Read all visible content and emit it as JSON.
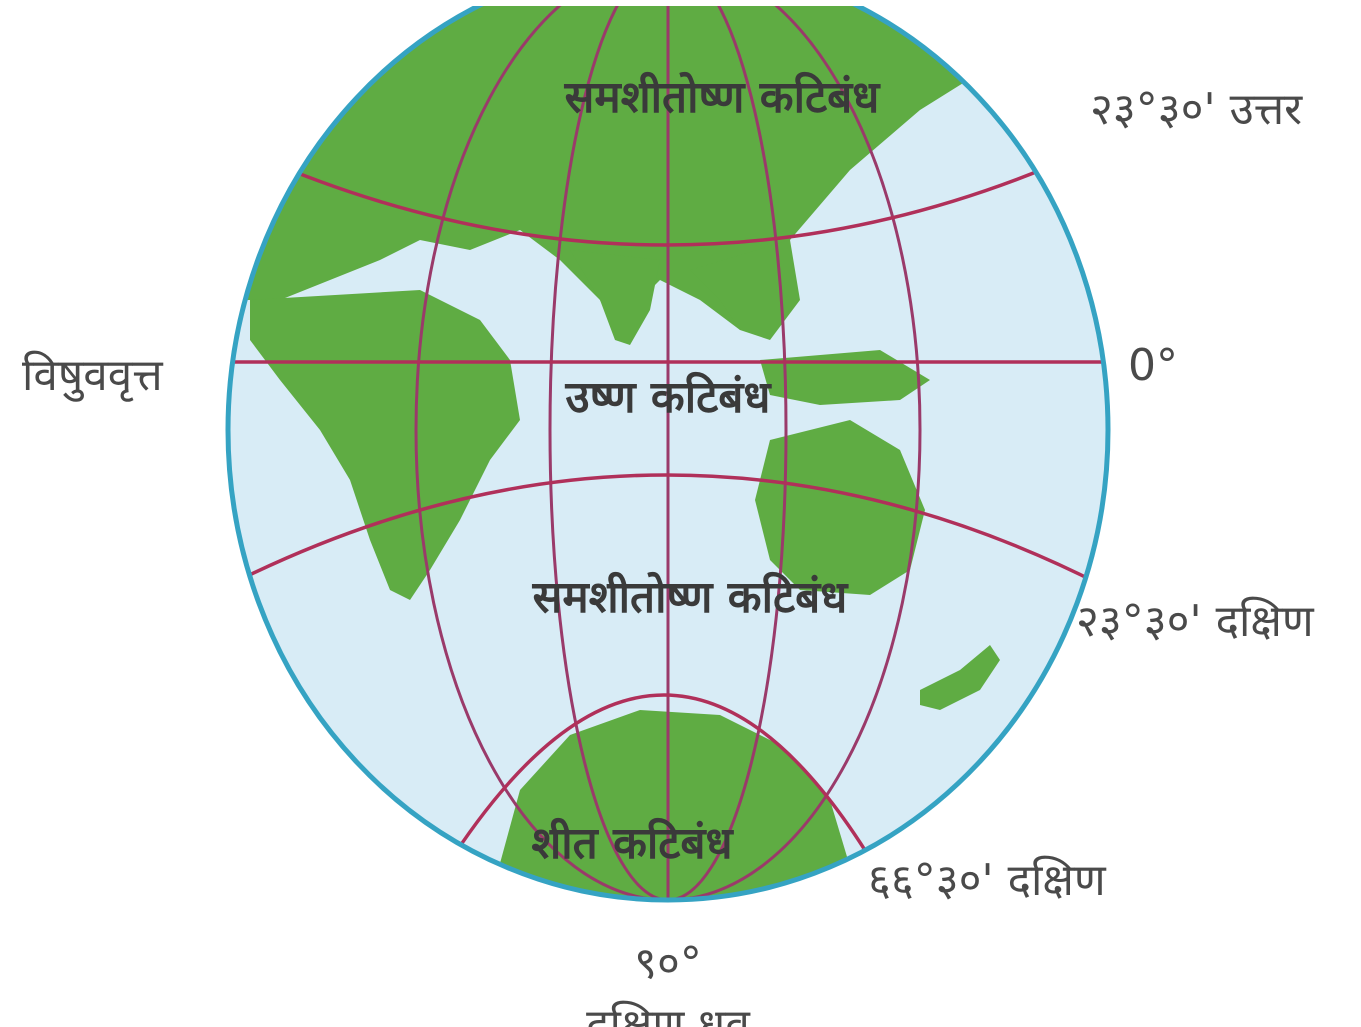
{
  "colors": {
    "ocean": "#d8ecf6",
    "land": "#5fac43",
    "globe_outline": "#35a3c3",
    "circle_lines": "#b0305a",
    "meridian_lines": "#9a3a6a",
    "label_text": "#3a3a3a"
  },
  "zones": {
    "north_temperate": "समशीतोष्ण कटिबंध",
    "torrid": "उष्ण कटिबंध",
    "south_temperate": "समशीतोष्ण कटिबंध",
    "frigid": "शीत कटिबंध"
  },
  "latitudes": {
    "tropic_north": "२३°३०' उत्तर",
    "equator_name": "विषुववृत्त",
    "equator_degree": "0°",
    "tropic_south": "२३°३०' दक्षिण",
    "antarctic_circle": "६६°३०' दक्षिण",
    "south_pole_degree": "९०°",
    "south_pole_name": "दक्षिण ध्रुव"
  }
}
